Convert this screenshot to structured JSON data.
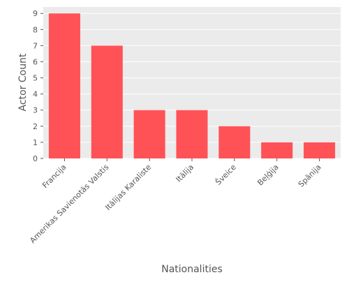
{
  "chart_data": {
    "type": "bar",
    "title": "",
    "xlabel": "Nationalities",
    "ylabel": "Actor Count",
    "categories": [
      "Francija",
      "Amerikas Savienotās Valstis",
      "Itālijas Karaliste",
      "Itālija",
      "Šveice",
      "Beļģija",
      "Spānija"
    ],
    "values": [
      9,
      7,
      3,
      3,
      2,
      1,
      1
    ],
    "ylim": [
      0,
      9.4
    ],
    "yticks": [
      0,
      1,
      2,
      3,
      4,
      5,
      6,
      7,
      8,
      9
    ],
    "grid": true,
    "legend": "none",
    "colors": {
      "bar": "#ff5257",
      "panel_background": "#ebebeb",
      "grid": "#ffffff",
      "text": "#555555"
    }
  }
}
